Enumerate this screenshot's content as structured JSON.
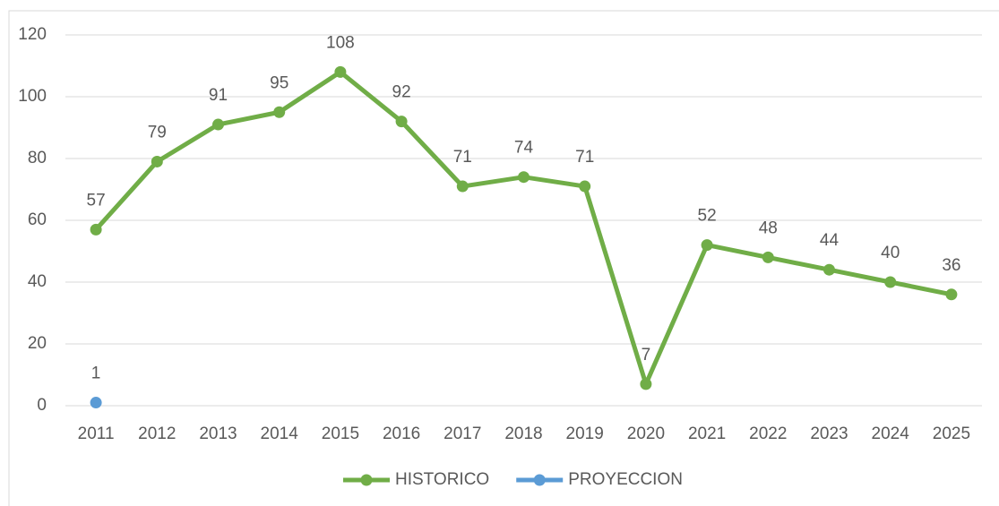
{
  "chart_data": {
    "type": "line",
    "categories": [
      "2011",
      "2012",
      "2013",
      "2014",
      "2015",
      "2016",
      "2017",
      "2018",
      "2019",
      "2020",
      "2021",
      "2022",
      "2023",
      "2024",
      "2025"
    ],
    "series": [
      {
        "name": "HISTORICO",
        "color": "#70ad47",
        "values": [
          57,
          79,
          91,
          95,
          108,
          92,
          71,
          74,
          71,
          7,
          52,
          48,
          44,
          40,
          36
        ]
      },
      {
        "name": "PROYECCION",
        "color": "#5b9bd5",
        "values": [
          1,
          null,
          null,
          null,
          null,
          null,
          null,
          null,
          null,
          null,
          null,
          null,
          null,
          null,
          null
        ]
      }
    ],
    "ylim": [
      0,
      120
    ],
    "yticks": [
      0,
      20,
      40,
      60,
      80,
      100,
      120
    ],
    "grid": true,
    "legend": "bottom"
  }
}
